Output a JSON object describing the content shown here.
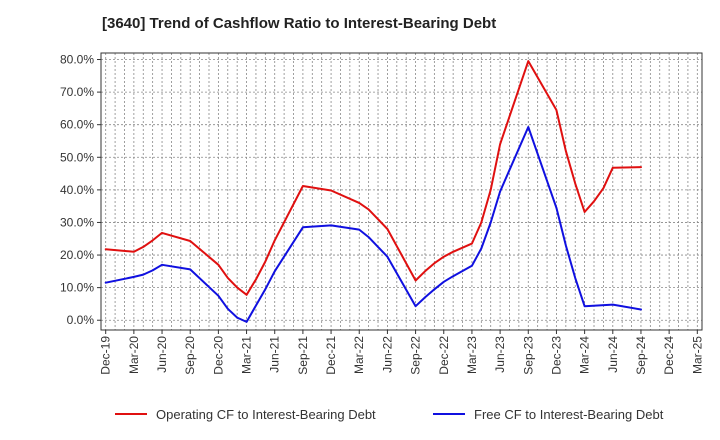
{
  "chart_data": {
    "type": "line",
    "title": "[3640]  Trend of Cashflow Ratio to Interest-Bearing Debt",
    "xlabel": "",
    "ylabel": "",
    "ylim": [
      -3,
      82
    ],
    "yticks": [
      "0.0%",
      "10.0%",
      "20.0%",
      "30.0%",
      "40.0%",
      "50.0%",
      "60.0%",
      "70.0%",
      "80.0%"
    ],
    "ytick_values": [
      0,
      10,
      20,
      30,
      40,
      50,
      60,
      70,
      80
    ],
    "categories": [
      "Dec-19",
      "Jan-20",
      "Feb-20",
      "Mar-20",
      "Apr-20",
      "May-20",
      "Jun-20",
      "Jul-20",
      "Aug-20",
      "Sep-20",
      "Oct-20",
      "Nov-20",
      "Dec-20",
      "Jan-21",
      "Feb-21",
      "Mar-21",
      "Apr-21",
      "May-21",
      "Jun-21",
      "Jul-21",
      "Aug-21",
      "Sep-21",
      "Oct-21",
      "Nov-21",
      "Dec-21",
      "Jan-22",
      "Feb-22",
      "Mar-22",
      "Apr-22",
      "May-22",
      "Jun-22",
      "Jul-22",
      "Aug-22",
      "Sep-22",
      "Oct-22",
      "Nov-22",
      "Dec-22",
      "Jan-23",
      "Feb-23",
      "Mar-23",
      "Apr-23",
      "May-23",
      "Jun-23",
      "Jul-23",
      "Aug-23",
      "Sep-23",
      "Oct-23",
      "Nov-23",
      "Dec-23",
      "Jan-24",
      "Feb-24",
      "Mar-24",
      "Apr-24",
      "May-24",
      "Jun-24",
      "Jul-24",
      "Aug-24",
      "Sep-24",
      "Oct-24",
      "Nov-24",
      "Dec-24",
      "Jan-25",
      "Feb-25",
      "Mar-25"
    ],
    "xtick_labels": [
      "Dec-19",
      "Mar-20",
      "Jun-20",
      "Sep-20",
      "Dec-20",
      "Mar-21",
      "Jun-21",
      "Sep-21",
      "Dec-21",
      "Mar-22",
      "Jun-22",
      "Sep-22",
      "Dec-22",
      "Mar-23",
      "Jun-23",
      "Sep-23",
      "Dec-23",
      "Mar-24",
      "Jun-24",
      "Sep-24",
      "Dec-24",
      "Mar-25"
    ],
    "grid": true,
    "legend_position": "bottom",
    "series": [
      {
        "name": "Operating CF to Interest-Bearing Debt",
        "color": "#e01010",
        "points": [
          [
            "Dec-19",
            21.8
          ],
          [
            "Mar-20",
            21.0
          ],
          [
            "Apr-20",
            22.5
          ],
          [
            "May-20",
            24.5
          ],
          [
            "Jun-20",
            26.8
          ],
          [
            "Sep-20",
            24.3
          ],
          [
            "Dec-20",
            17.0
          ],
          [
            "Jan-21",
            13.0
          ],
          [
            "Feb-21",
            10.0
          ],
          [
            "Mar-21",
            7.8
          ],
          [
            "Apr-21",
            12.5
          ],
          [
            "May-21",
            18.0
          ],
          [
            "Jun-21",
            24.5
          ],
          [
            "Sep-21",
            41.2
          ],
          [
            "Dec-21",
            39.8
          ],
          [
            "Mar-22",
            36.0
          ],
          [
            "Apr-22",
            34.0
          ],
          [
            "May-22",
            31.0
          ],
          [
            "Jun-22",
            28.0
          ],
          [
            "Sep-22",
            12.2
          ],
          [
            "Oct-22",
            15.0
          ],
          [
            "Nov-22",
            17.5
          ],
          [
            "Dec-22",
            19.5
          ],
          [
            "Jan-23",
            21.0
          ],
          [
            "Mar-23",
            23.5
          ],
          [
            "Apr-23",
            30.0
          ],
          [
            "May-23",
            40.0
          ],
          [
            "Jun-23",
            54.0
          ],
          [
            "Sep-23",
            79.5
          ],
          [
            "Dec-23",
            64.5
          ],
          [
            "Jan-24",
            52.0
          ],
          [
            "Feb-24",
            42.0
          ],
          [
            "Mar-24",
            33.2
          ],
          [
            "Apr-24",
            36.5
          ],
          [
            "May-24",
            40.5
          ],
          [
            "Jun-24",
            46.8
          ],
          [
            "Sep-24",
            47.0
          ]
        ]
      },
      {
        "name": "Free CF to Interest-Bearing Debt",
        "color": "#1010e0",
        "points": [
          [
            "Dec-19",
            11.5
          ],
          [
            "Mar-20",
            13.3
          ],
          [
            "Apr-20",
            14.0
          ],
          [
            "May-20",
            15.3
          ],
          [
            "Jun-20",
            17.0
          ],
          [
            "Sep-20",
            15.6
          ],
          [
            "Dec-20",
            7.5
          ],
          [
            "Jan-21",
            3.5
          ],
          [
            "Feb-21",
            0.8
          ],
          [
            "Mar-21",
            -0.5
          ],
          [
            "Apr-21",
            4.5
          ],
          [
            "May-21",
            9.5
          ],
          [
            "Jun-21",
            15.0
          ],
          [
            "Sep-21",
            28.5
          ],
          [
            "Dec-21",
            29.1
          ],
          [
            "Mar-22",
            27.8
          ],
          [
            "Apr-22",
            25.5
          ],
          [
            "May-22",
            22.5
          ],
          [
            "Jun-22",
            19.5
          ],
          [
            "Sep-22",
            4.3
          ],
          [
            "Oct-22",
            7.0
          ],
          [
            "Nov-22",
            9.5
          ],
          [
            "Dec-22",
            11.8
          ],
          [
            "Jan-23",
            13.5
          ],
          [
            "Mar-23",
            16.7
          ],
          [
            "Apr-23",
            22.0
          ],
          [
            "May-23",
            30.0
          ],
          [
            "Jun-23",
            39.5
          ],
          [
            "Sep-23",
            59.3
          ],
          [
            "Dec-23",
            34.5
          ],
          [
            "Jan-24",
            23.0
          ],
          [
            "Feb-24",
            13.0
          ],
          [
            "Mar-24",
            4.3
          ],
          [
            "Jun-24",
            4.8
          ],
          [
            "Sep-24",
            3.3
          ]
        ]
      }
    ]
  }
}
